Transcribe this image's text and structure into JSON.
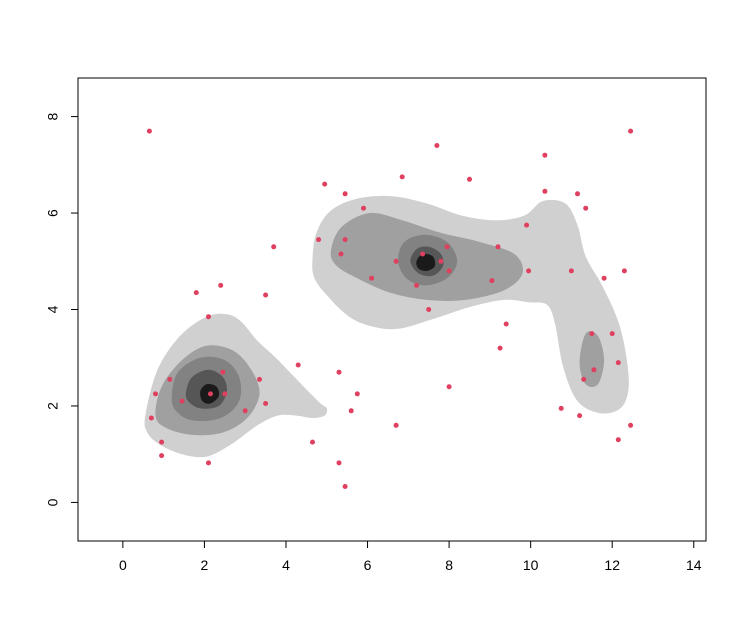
{
  "chart_data": {
    "type": "scatter",
    "title": "",
    "xlabel": "",
    "ylabel": "",
    "xlim": [
      -1.1,
      14.3
    ],
    "ylim": [
      -0.8,
      8.8
    ],
    "x_ticks": [
      0,
      2,
      4,
      6,
      8,
      10,
      12,
      14
    ],
    "y_ticks": [
      0,
      2,
      4,
      6,
      8
    ],
    "grid": false,
    "density_levels": {
      "light": [
        [
          [
            0.55,
            1.8
          ],
          [
            0.85,
            2.75
          ],
          [
            1.4,
            3.45
          ],
          [
            2.05,
            3.85
          ],
          [
            2.55,
            3.9
          ],
          [
            2.9,
            3.75
          ],
          [
            3.3,
            3.35
          ],
          [
            3.75,
            3.0
          ],
          [
            4.15,
            2.65
          ],
          [
            4.55,
            2.3
          ],
          [
            4.85,
            2.05
          ],
          [
            5.0,
            1.95
          ],
          [
            4.95,
            1.8
          ],
          [
            4.65,
            1.75
          ],
          [
            4.25,
            1.8
          ],
          [
            3.8,
            1.8
          ],
          [
            3.3,
            1.6
          ],
          [
            2.65,
            1.2
          ],
          [
            2.05,
            0.95
          ],
          [
            1.45,
            1.0
          ],
          [
            0.9,
            1.2
          ],
          [
            0.6,
            1.45
          ]
        ],
        [
          [
            4.65,
            5.05
          ],
          [
            4.75,
            5.6
          ],
          [
            5.1,
            6.05
          ],
          [
            5.75,
            6.3
          ],
          [
            6.6,
            6.35
          ],
          [
            7.45,
            6.2
          ],
          [
            8.3,
            5.95
          ],
          [
            9.15,
            5.85
          ],
          [
            9.85,
            5.95
          ],
          [
            10.3,
            6.25
          ],
          [
            10.85,
            6.2
          ],
          [
            11.15,
            5.75
          ],
          [
            11.35,
            5.1
          ],
          [
            11.75,
            4.5
          ],
          [
            12.15,
            3.75
          ],
          [
            12.35,
            3.0
          ],
          [
            12.4,
            2.35
          ],
          [
            12.2,
            1.95
          ],
          [
            11.7,
            1.85
          ],
          [
            11.15,
            2.1
          ],
          [
            10.8,
            2.8
          ],
          [
            10.6,
            3.7
          ],
          [
            10.4,
            4.1
          ],
          [
            9.95,
            4.15
          ],
          [
            9.35,
            4.2
          ],
          [
            8.5,
            4.05
          ],
          [
            7.6,
            3.8
          ],
          [
            6.75,
            3.6
          ],
          [
            6.1,
            3.65
          ],
          [
            5.55,
            3.85
          ],
          [
            5.05,
            4.25
          ],
          [
            4.7,
            4.65
          ]
        ]
      ],
      "mid": [
        [
          [
            0.8,
            1.8
          ],
          [
            0.95,
            2.4
          ],
          [
            1.45,
            2.95
          ],
          [
            2.05,
            3.25
          ],
          [
            2.7,
            3.15
          ],
          [
            3.15,
            2.75
          ],
          [
            3.35,
            2.25
          ],
          [
            3.05,
            1.75
          ],
          [
            2.45,
            1.45
          ],
          [
            1.7,
            1.4
          ],
          [
            1.05,
            1.55
          ]
        ],
        [
          [
            5.1,
            5.2
          ],
          [
            5.35,
            5.7
          ],
          [
            6.05,
            6.0
          ],
          [
            6.85,
            5.85
          ],
          [
            7.75,
            5.6
          ],
          [
            8.75,
            5.4
          ],
          [
            9.6,
            5.15
          ],
          [
            9.8,
            4.75
          ],
          [
            9.35,
            4.4
          ],
          [
            8.4,
            4.2
          ],
          [
            7.45,
            4.2
          ],
          [
            6.55,
            4.35
          ],
          [
            5.75,
            4.65
          ],
          [
            5.25,
            4.9
          ]
        ],
        [
          [
            11.2,
            2.9
          ],
          [
            11.35,
            3.5
          ],
          [
            11.65,
            3.45
          ],
          [
            11.8,
            2.95
          ],
          [
            11.65,
            2.45
          ],
          [
            11.35,
            2.45
          ]
        ]
      ],
      "dark": [
        [
          [
            1.2,
            2.2
          ],
          [
            1.35,
            2.7
          ],
          [
            1.9,
            3.0
          ],
          [
            2.5,
            2.95
          ],
          [
            2.85,
            2.6
          ],
          [
            2.85,
            2.1
          ],
          [
            2.4,
            1.75
          ],
          [
            1.7,
            1.7
          ],
          [
            1.3,
            1.9
          ]
        ],
        [
          [
            6.75,
            5.0
          ],
          [
            6.9,
            5.4
          ],
          [
            7.4,
            5.55
          ],
          [
            7.95,
            5.4
          ],
          [
            8.2,
            5.0
          ],
          [
            7.95,
            4.65
          ],
          [
            7.4,
            4.5
          ],
          [
            6.95,
            4.65
          ]
        ]
      ],
      "darker": [
        [
          [
            1.55,
            2.3
          ],
          [
            1.7,
            2.6
          ],
          [
            2.1,
            2.75
          ],
          [
            2.45,
            2.6
          ],
          [
            2.55,
            2.3
          ],
          [
            2.35,
            2.0
          ],
          [
            1.9,
            1.95
          ],
          [
            1.6,
            2.1
          ]
        ],
        [
          [
            7.05,
            5.0
          ],
          [
            7.2,
            5.25
          ],
          [
            7.5,
            5.3
          ],
          [
            7.8,
            5.15
          ],
          [
            7.85,
            4.9
          ],
          [
            7.6,
            4.7
          ],
          [
            7.25,
            4.75
          ]
        ]
      ],
      "core": [
        [
          [
            1.9,
            2.3
          ],
          [
            2.05,
            2.45
          ],
          [
            2.3,
            2.4
          ],
          [
            2.35,
            2.2
          ],
          [
            2.15,
            2.05
          ],
          [
            1.95,
            2.1
          ]
        ],
        [
          [
            7.2,
            5.0
          ],
          [
            7.35,
            5.15
          ],
          [
            7.6,
            5.1
          ],
          [
            7.65,
            4.9
          ],
          [
            7.45,
            4.8
          ],
          [
            7.25,
            4.85
          ]
        ]
      ]
    },
    "points": [
      [
        0.65,
        7.7
      ],
      [
        0.7,
        1.75
      ],
      [
        0.8,
        2.25
      ],
      [
        0.95,
        1.25
      ],
      [
        0.95,
        0.97
      ],
      [
        1.15,
        2.55
      ],
      [
        1.45,
        2.1
      ],
      [
        1.8,
        4.35
      ],
      [
        2.1,
        3.85
      ],
      [
        2.1,
        0.82
      ],
      [
        2.15,
        2.25
      ],
      [
        2.4,
        4.5
      ],
      [
        2.45,
        2.7
      ],
      [
        2.5,
        2.25
      ],
      [
        3.0,
        1.9
      ],
      [
        3.35,
        2.55
      ],
      [
        3.5,
        4.3
      ],
      [
        3.5,
        2.05
      ],
      [
        3.7,
        5.3
      ],
      [
        4.3,
        2.85
      ],
      [
        4.65,
        1.25
      ],
      [
        4.8,
        5.45
      ],
      [
        4.95,
        6.6
      ],
      [
        5.3,
        2.7
      ],
      [
        5.3,
        0.82
      ],
      [
        5.35,
        5.15
      ],
      [
        5.45,
        6.4
      ],
      [
        5.45,
        5.45
      ],
      [
        5.45,
        0.33
      ],
      [
        5.6,
        1.9
      ],
      [
        5.75,
        2.25
      ],
      [
        5.9,
        6.1
      ],
      [
        6.1,
        4.65
      ],
      [
        6.7,
        1.6
      ],
      [
        6.7,
        5.0
      ],
      [
        6.85,
        6.75
      ],
      [
        7.2,
        4.5
      ],
      [
        7.35,
        5.15
      ],
      [
        7.5,
        4.0
      ],
      [
        7.7,
        7.4
      ],
      [
        7.8,
        5.0
      ],
      [
        7.95,
        5.3
      ],
      [
        8.0,
        4.8
      ],
      [
        8.0,
        2.4
      ],
      [
        8.5,
        6.7
      ],
      [
        9.05,
        4.6
      ],
      [
        9.2,
        5.3
      ],
      [
        9.25,
        3.2
      ],
      [
        9.4,
        3.7
      ],
      [
        9.9,
        5.75
      ],
      [
        9.95,
        4.8
      ],
      [
        10.35,
        7.2
      ],
      [
        10.35,
        6.45
      ],
      [
        10.75,
        1.95
      ],
      [
        11.0,
        4.8
      ],
      [
        11.15,
        6.4
      ],
      [
        11.2,
        1.8
      ],
      [
        11.3,
        2.55
      ],
      [
        11.35,
        6.1
      ],
      [
        11.5,
        3.5
      ],
      [
        11.55,
        2.75
      ],
      [
        11.8,
        4.65
      ],
      [
        12.0,
        3.5
      ],
      [
        12.15,
        2.9
      ],
      [
        12.15,
        1.3
      ],
      [
        12.3,
        4.8
      ],
      [
        12.45,
        7.7
      ],
      [
        12.45,
        1.6
      ]
    ],
    "colors": {
      "levels": [
        "#d0d0d0",
        "#a0a0a0",
        "#828282",
        "#565656",
        "#1a1a1a"
      ],
      "points": "#e0405f",
      "axis": "#000000",
      "background": "#ffffff"
    }
  }
}
